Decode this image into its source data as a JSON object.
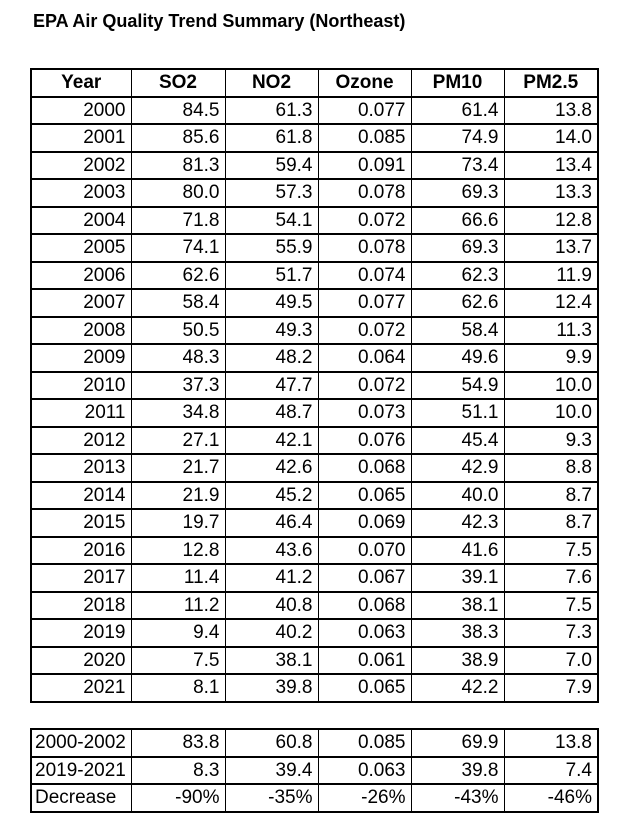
{
  "title": "EPA Air Quality Trend Summary (Northeast)",
  "colors": {
    "background": "#ffffff",
    "text": "#000000",
    "border": "#000000"
  },
  "chart_data": {
    "type": "table",
    "title": "EPA Air Quality Trend Summary (Northeast)",
    "columns": [
      "Year",
      "SO2",
      "NO2",
      "Ozone",
      "PM10",
      "PM2.5"
    ],
    "rows": [
      [
        "2000",
        "84.5",
        "61.3",
        "0.077",
        "61.4",
        "13.8"
      ],
      [
        "2001",
        "85.6",
        "61.8",
        "0.085",
        "74.9",
        "14.0"
      ],
      [
        "2002",
        "81.3",
        "59.4",
        "0.091",
        "73.4",
        "13.4"
      ],
      [
        "2003",
        "80.0",
        "57.3",
        "0.078",
        "69.3",
        "13.3"
      ],
      [
        "2004",
        "71.8",
        "54.1",
        "0.072",
        "66.6",
        "12.8"
      ],
      [
        "2005",
        "74.1",
        "55.9",
        "0.078",
        "69.3",
        "13.7"
      ],
      [
        "2006",
        "62.6",
        "51.7",
        "0.074",
        "62.3",
        "11.9"
      ],
      [
        "2007",
        "58.4",
        "49.5",
        "0.077",
        "62.6",
        "12.4"
      ],
      [
        "2008",
        "50.5",
        "49.3",
        "0.072",
        "58.4",
        "11.3"
      ],
      [
        "2009",
        "48.3",
        "48.2",
        "0.064",
        "49.6",
        "9.9"
      ],
      [
        "2010",
        "37.3",
        "47.7",
        "0.072",
        "54.9",
        "10.0"
      ],
      [
        "2011",
        "34.8",
        "48.7",
        "0.073",
        "51.1",
        "10.0"
      ],
      [
        "2012",
        "27.1",
        "42.1",
        "0.076",
        "45.4",
        "9.3"
      ],
      [
        "2013",
        "21.7",
        "42.6",
        "0.068",
        "42.9",
        "8.8"
      ],
      [
        "2014",
        "21.9",
        "45.2",
        "0.065",
        "40.0",
        "8.7"
      ],
      [
        "2015",
        "19.7",
        "46.4",
        "0.069",
        "42.3",
        "8.7"
      ],
      [
        "2016",
        "12.8",
        "43.6",
        "0.070",
        "41.6",
        "7.5"
      ],
      [
        "2017",
        "11.4",
        "41.2",
        "0.067",
        "39.1",
        "7.6"
      ],
      [
        "2018",
        "11.2",
        "40.8",
        "0.068",
        "38.1",
        "7.5"
      ],
      [
        "2019",
        "9.4",
        "40.2",
        "0.063",
        "38.3",
        "7.3"
      ],
      [
        "2020",
        "7.5",
        "38.1",
        "0.061",
        "38.9",
        "7.0"
      ],
      [
        "2021",
        "8.1",
        "39.8",
        "0.065",
        "42.2",
        "7.9"
      ]
    ],
    "summary_rows": [
      [
        "2000-2002",
        "83.8",
        "60.8",
        "0.085",
        "69.9",
        "13.8"
      ],
      [
        "2019-2021",
        "8.3",
        "39.4",
        "0.063",
        "39.8",
        "7.4"
      ],
      [
        "Decrease",
        "-90%",
        "-35%",
        "-26%",
        "-43%",
        "-46%"
      ]
    ]
  }
}
